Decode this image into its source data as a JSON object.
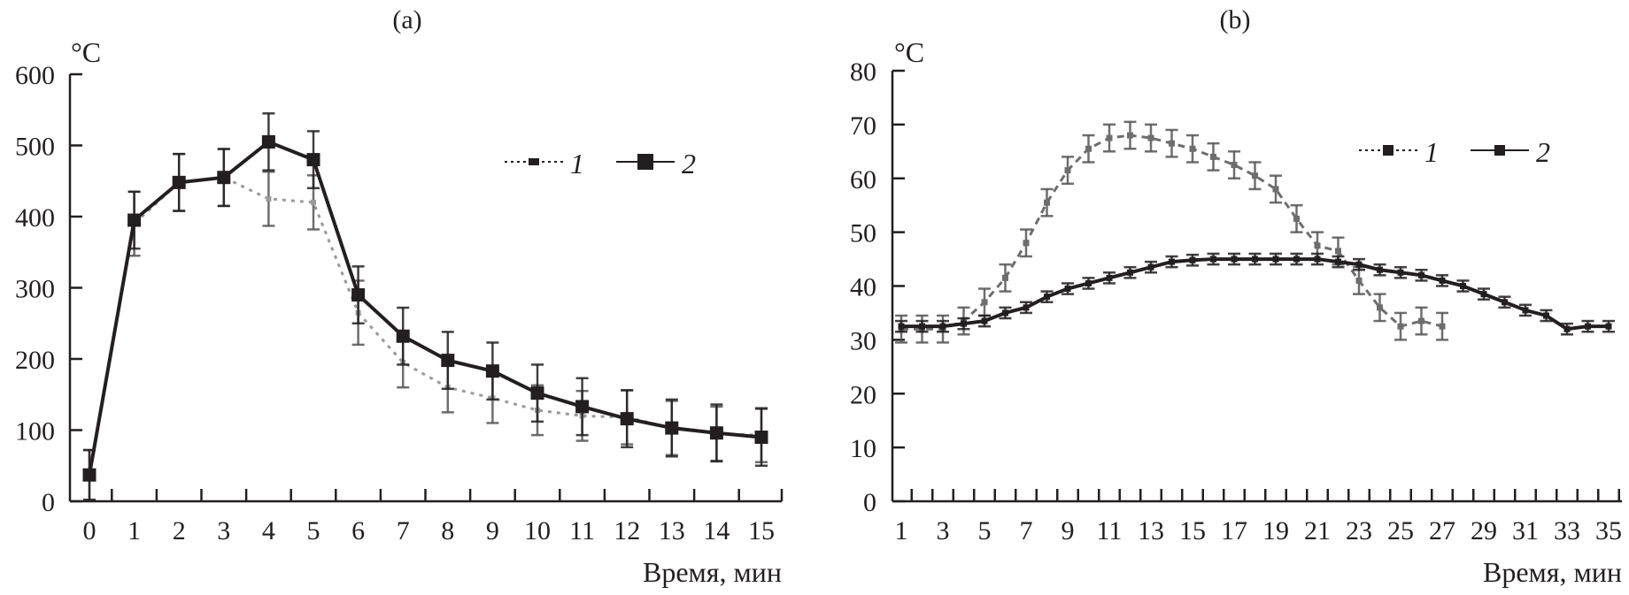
{
  "chart_data": [
    {
      "type": "line",
      "panel_label": "(a)",
      "ylabel": "°C",
      "xlabel": "Время, мин",
      "xlim": [
        0,
        15
      ],
      "ylim": [
        0,
        600
      ],
      "yticks": [
        0,
        100,
        200,
        300,
        400,
        500,
        600
      ],
      "xticks": [
        0,
        1,
        2,
        3,
        4,
        5,
        6,
        7,
        8,
        9,
        10,
        11,
        12,
        13,
        14,
        15
      ],
      "grid": false,
      "legend_position": "top-right",
      "x": [
        0,
        1,
        2,
        3,
        4,
        5,
        6,
        7,
        8,
        9,
        10,
        11,
        12,
        13,
        14,
        15
      ],
      "series": [
        {
          "name": "1",
          "style": "dotted",
          "color": "#9a9a9a",
          "values": [
            37,
            390,
            448,
            455,
            425,
            420,
            265,
            195,
            160,
            145,
            128,
            120,
            118,
            103,
            95,
            93
          ],
          "error": [
            35,
            45,
            40,
            40,
            38,
            38,
            45,
            35,
            35,
            35,
            35,
            35,
            38,
            38,
            38,
            38
          ]
        },
        {
          "name": "2",
          "style": "solid",
          "color": "#231f20",
          "values": [
            37,
            395,
            448,
            455,
            505,
            480,
            290,
            232,
            198,
            183,
            152,
            133,
            116,
            103,
            96,
            90
          ],
          "error": [
            35,
            40,
            40,
            40,
            40,
            40,
            40,
            40,
            40,
            40,
            40,
            40,
            40,
            40,
            40,
            40
          ]
        }
      ]
    },
    {
      "type": "line",
      "panel_label": "(b)",
      "ylabel": "°C",
      "xlabel": "Время, мин",
      "xlim": [
        1,
        35
      ],
      "ylim": [
        0,
        80
      ],
      "yticks": [
        0,
        10,
        20,
        30,
        40,
        50,
        60,
        70,
        80
      ],
      "xticks": [
        1,
        3,
        5,
        7,
        9,
        11,
        13,
        15,
        17,
        19,
        21,
        23,
        25,
        27,
        29,
        31,
        33,
        35
      ],
      "grid": false,
      "legend_position": "top-right",
      "series": [
        {
          "name": "1",
          "style": "dashed",
          "color": "#6e6e6e",
          "x": [
            1,
            2,
            3,
            4,
            5,
            6,
            7,
            8,
            9,
            10,
            11,
            12,
            13,
            14,
            15,
            16,
            17,
            18,
            19,
            20,
            21,
            22,
            23,
            24,
            25,
            26,
            27
          ],
          "values": [
            32,
            32,
            32,
            33.5,
            37,
            41.5,
            48,
            55.5,
            61.5,
            65.5,
            67.5,
            68,
            67.5,
            66.5,
            65.5,
            64,
            62.5,
            60.5,
            58,
            52.5,
            47.5,
            46.5,
            41,
            36,
            32.5,
            33.5,
            32.5
          ],
          "error": [
            2.5,
            2.5,
            2.5,
            2.5,
            2.5,
            2.5,
            2.5,
            2.5,
            2.5,
            2.5,
            2.5,
            2.5,
            2.5,
            2.5,
            2.5,
            2.5,
            2.5,
            2.5,
            2.5,
            2.5,
            2.5,
            2.5,
            2.5,
            2.5,
            2.5,
            2.5,
            2.5
          ]
        },
        {
          "name": "2",
          "style": "solid",
          "color": "#231f20",
          "x": [
            1,
            2,
            3,
            4,
            5,
            6,
            7,
            8,
            9,
            10,
            11,
            12,
            13,
            14,
            15,
            16,
            17,
            18,
            19,
            20,
            21,
            22,
            23,
            24,
            25,
            26,
            27,
            28,
            29,
            30,
            31,
            32,
            33,
            34,
            35
          ],
          "values": [
            32.5,
            32.5,
            32.5,
            33,
            33.5,
            35,
            36,
            38,
            39.5,
            40.5,
            41.5,
            42.5,
            43.5,
            44.5,
            44.8,
            45,
            45,
            45,
            45,
            45,
            45,
            44.5,
            44,
            43,
            42.5,
            42,
            41,
            40,
            38.5,
            37,
            35.5,
            34.5,
            32,
            32.5,
            32.5
          ],
          "error": [
            1,
            1,
            1,
            1,
            1,
            1,
            1,
            1,
            1,
            1,
            1,
            1,
            1,
            1,
            1,
            1,
            1,
            1,
            1,
            1,
            1,
            1,
            1,
            1,
            1,
            1,
            1,
            1,
            1,
            1,
            1,
            1,
            1,
            1,
            1
          ]
        }
      ]
    }
  ]
}
